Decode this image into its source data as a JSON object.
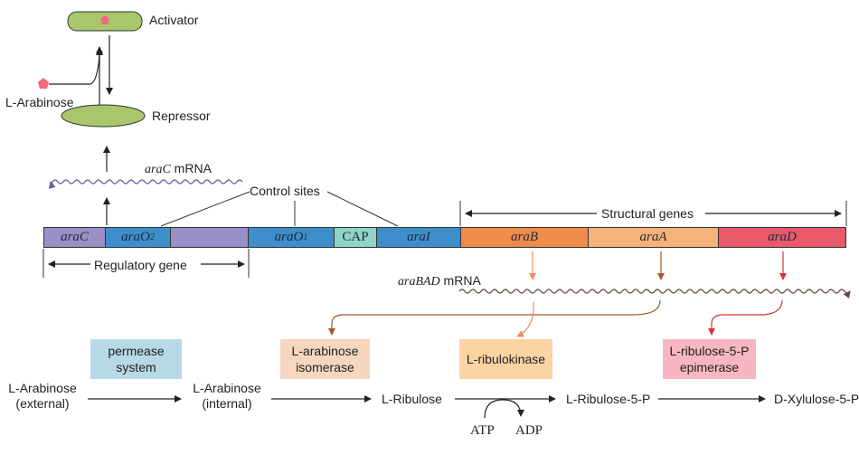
{
  "regulation": {
    "activator": "Activator",
    "repressor": "Repressor",
    "arabinose_prefix": "L",
    "arabinose_name": "-Arabinose",
    "arac_mrna_gene": "araC",
    "arac_mrna_suffix": " mRNA",
    "control_sites": "Control sites",
    "structural_genes": "Structural genes",
    "regulatory_gene": "Regulatory gene",
    "arabad_mrna_gene": "araBAD",
    "arabad_mrna_suffix": " mRNA"
  },
  "dna": {
    "segments": [
      {
        "label": "araC",
        "color": "#9b8fc8"
      },
      {
        "label": "araO",
        "sub": "2",
        "color": "#3d8ecb"
      },
      {
        "label": "",
        "color": "#9b8fc8"
      },
      {
        "label": "araO",
        "sub": "1",
        "color": "#3d8ecb"
      },
      {
        "label": "CAP",
        "color": "#8fd3c9"
      },
      {
        "label": "araI",
        "color": "#3d8ecb"
      },
      {
        "label": "araB",
        "color": "#f08c4a"
      },
      {
        "label": "araA",
        "color": "#f7b27a"
      },
      {
        "label": "araD",
        "color": "#e85a6a"
      }
    ]
  },
  "enzymes": {
    "permease_line1": "permease",
    "permease_line2": "system",
    "isomerase_line1_prefix": "L",
    "isomerase_line1": "-arabinose",
    "isomerase_line2": "isomerase",
    "ribulokinase_prefix": "L",
    "ribulokinase": "-ribulokinase",
    "epimerase_line1_prefix": "L",
    "epimerase_line1": "-ribulose-5-P",
    "epimerase_line2": "epimerase"
  },
  "pathway": {
    "ext_prefix": "L",
    "ext_name": "-Arabinose",
    "ext_note": "(external)",
    "int_prefix": "L",
    "int_name": "-Arabinose",
    "int_note": "(internal)",
    "ribulose_prefix": "L",
    "ribulose": "-Ribulose",
    "ribulose5p_prefix": "L",
    "ribulose5p": "-Ribulose-5-P",
    "xylulose_prefix": "D",
    "xylulose": "-Xylulose-5-P",
    "atp": "ATP",
    "adp": "ADP"
  },
  "colors": {
    "activator_fill": "#a8c66c",
    "repressor_fill": "#a8c66c",
    "arabinose_pentagon": "#f06a7a",
    "permease_box": "#b7d9e6",
    "isomerase_box": "#f6d6be",
    "ribulokinase_box": "#fbd3a5",
    "epimerase_box": "#f7b7c2",
    "arrow_orange": "#e89060",
    "arrow_brown": "#a05a2c",
    "arrow_red": "#d8343c",
    "mrna_arac": "#6a5aa0",
    "mrna_arabad": "#6a4a3a"
  }
}
